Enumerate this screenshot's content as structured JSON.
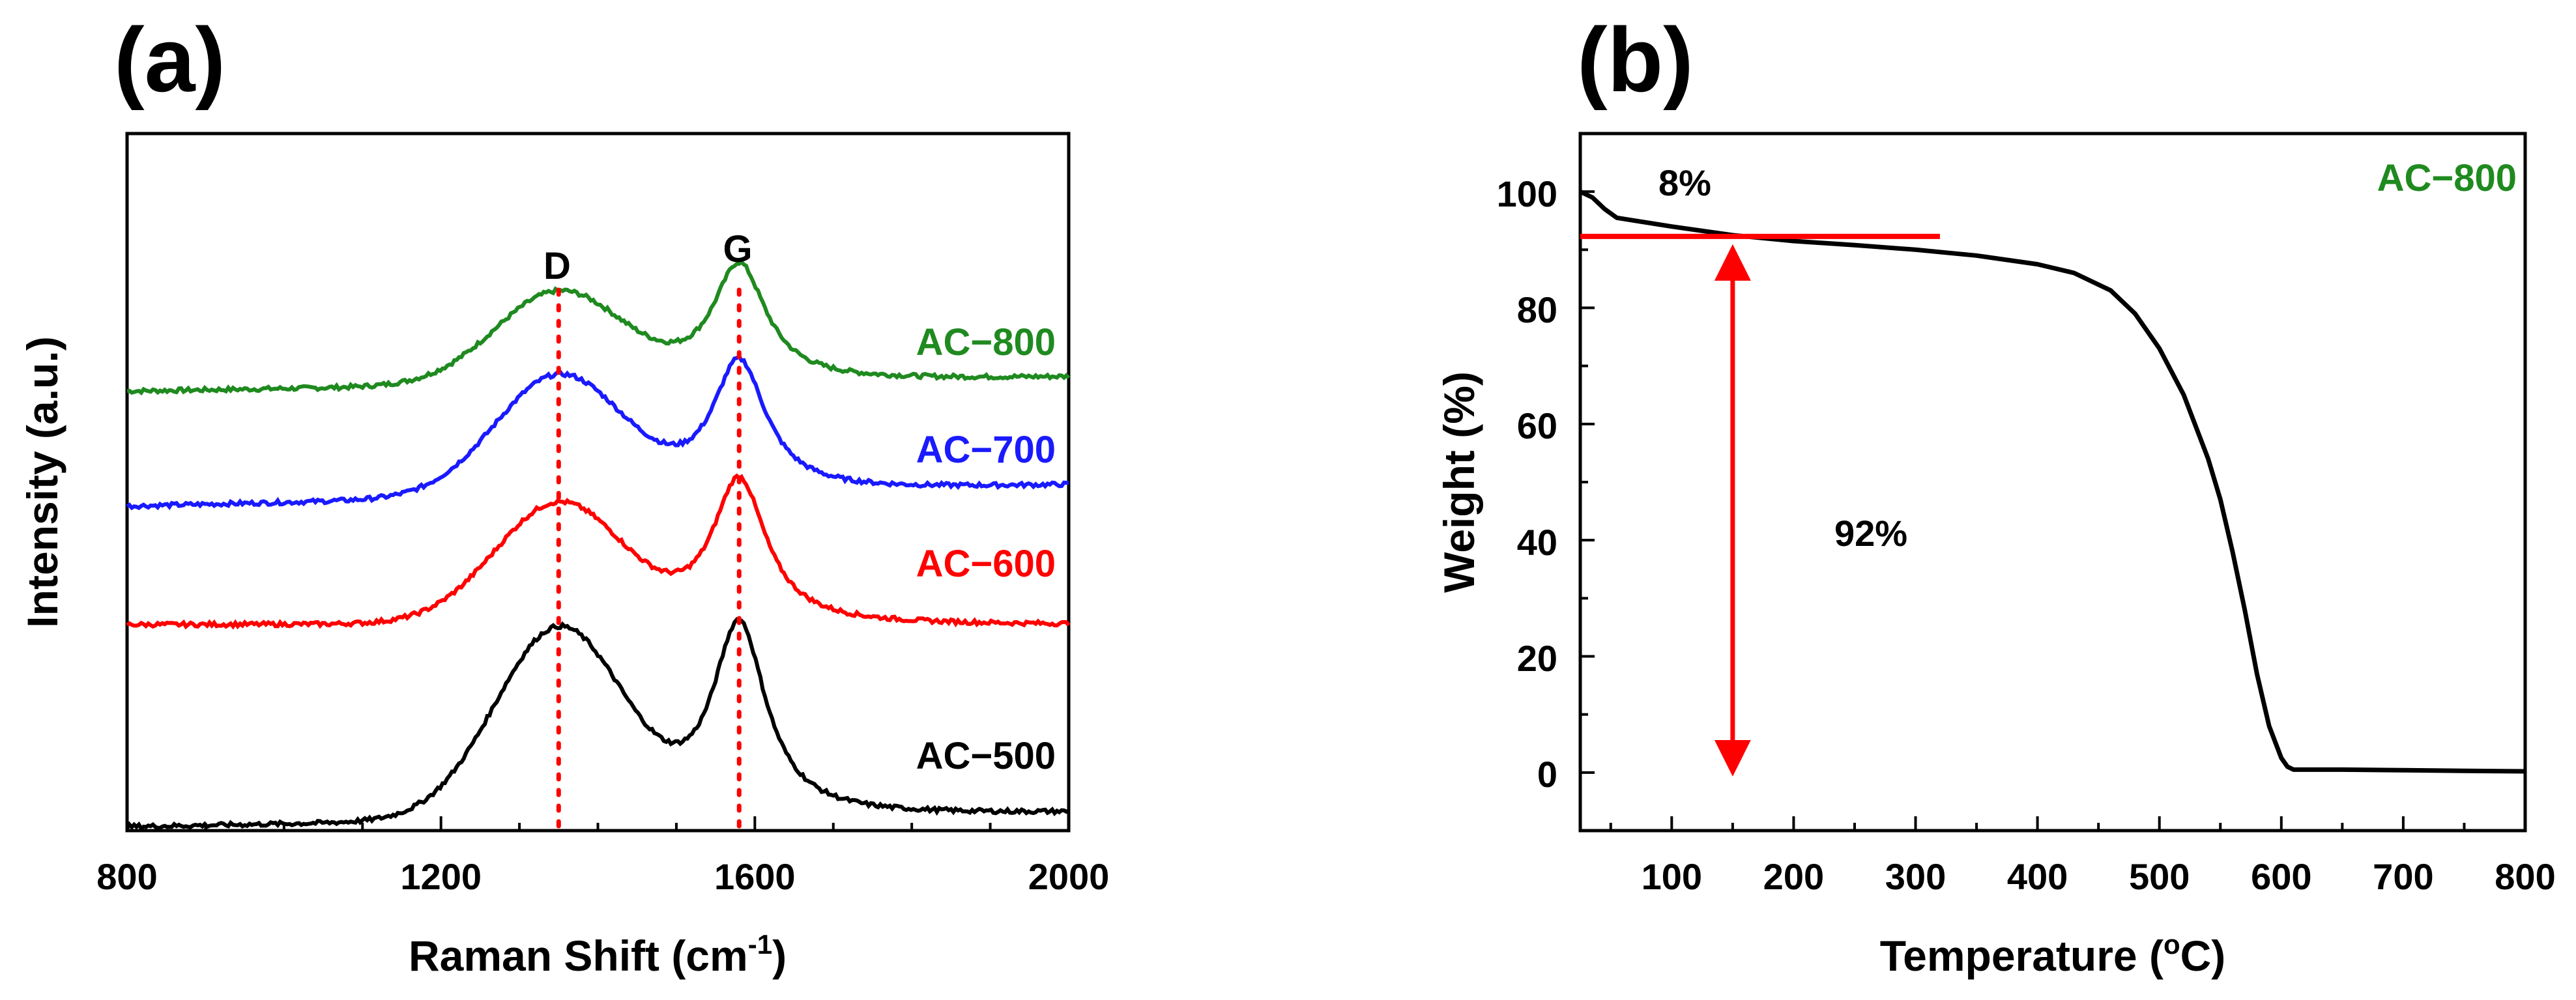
{
  "figure": {
    "panels": [
      "(a)",
      "(b)"
    ]
  },
  "chart_data": [
    {
      "type": "line",
      "panel_label": "(a)",
      "xlabel": "Raman Shift (cm",
      "xlabel_sup": "-1",
      "xlabel_end": ")",
      "ylabel": "Intensity (a.u.)",
      "xlim": [
        800,
        2000
      ],
      "ylim": [
        0,
        1
      ],
      "x_ticks": [
        800,
        1200,
        1600,
        2000
      ],
      "y_ticks": [],
      "grid": false,
      "reference_lines": [
        {
          "name": "D",
          "x": 1350,
          "color": "#ff0000",
          "style": "dotted"
        },
        {
          "name": "G",
          "x": 1580,
          "color": "#ff0000",
          "style": "dotted"
        }
      ],
      "peak_params": {
        "d_center": 1350,
        "d_width": 115,
        "g_center": 1580,
        "g_width": 42
      },
      "series": [
        {
          "name": "AC−800",
          "color": "#1f8a1f",
          "baseline": 0.63,
          "base_slope": 0.02,
          "d_height": 0.13,
          "g_height": 0.17
        },
        {
          "name": "AC−700",
          "color": "#1a1aff",
          "baseline": 0.465,
          "base_slope": 0.03,
          "d_height": 0.17,
          "g_height": 0.19
        },
        {
          "name": "AC−600",
          "color": "#ff0000",
          "baseline": 0.295,
          "base_slope": 0.0,
          "d_height": 0.17,
          "g_height": 0.21
        },
        {
          "name": "AC−500",
          "color": "#000000",
          "baseline": 0.005,
          "base_slope": 0.02,
          "d_height": 0.27,
          "g_height": 0.28
        }
      ]
    },
    {
      "type": "line",
      "panel_label": "(b)",
      "xlabel": "Temperature (",
      "xlabel_sup": "o",
      "xlabel_end": "C)",
      "ylabel": "Weight (%)",
      "xlim": [
        25,
        800
      ],
      "ylim": [
        -10,
        110
      ],
      "x_ticks": [
        100,
        200,
        300,
        400,
        500,
        600,
        700,
        800
      ],
      "y_ticks": [
        0,
        20,
        40,
        60,
        80,
        100
      ],
      "grid": false,
      "series": [
        {
          "name": "AC−800",
          "color": "#000000",
          "x": [
            25,
            35,
            45,
            55,
            70,
            100,
            150,
            200,
            250,
            300,
            350,
            400,
            430,
            460,
            480,
            500,
            520,
            540,
            550,
            560,
            570,
            580,
            590,
            600,
            605,
            610,
            650,
            700,
            750,
            800
          ],
          "y": [
            100,
            99,
            97,
            95.5,
            95,
            94,
            92.5,
            91.5,
            90.8,
            90,
            89,
            87.5,
            86,
            83,
            79,
            73,
            65,
            54,
            47,
            38,
            28,
            17,
            8,
            2.5,
            1,
            0.5,
            0.5,
            0.4,
            0.3,
            0.2
          ]
        }
      ],
      "annotations": [
        {
          "text": "8%",
          "x": 93,
          "y": 100.5
        },
        {
          "text": "92%",
          "x": 260,
          "y": 41.5
        },
        {
          "text": "AC−800",
          "x": 765,
          "y": 101.5,
          "color": "#1f8a1f"
        }
      ],
      "reference_line": {
        "y": 92.3,
        "x_start": 25,
        "x_end": 320,
        "color": "#ff0000"
      },
      "arrow": {
        "x": 150,
        "y_from": 92.3,
        "y_to": 0,
        "color": "#ff0000"
      }
    }
  ]
}
